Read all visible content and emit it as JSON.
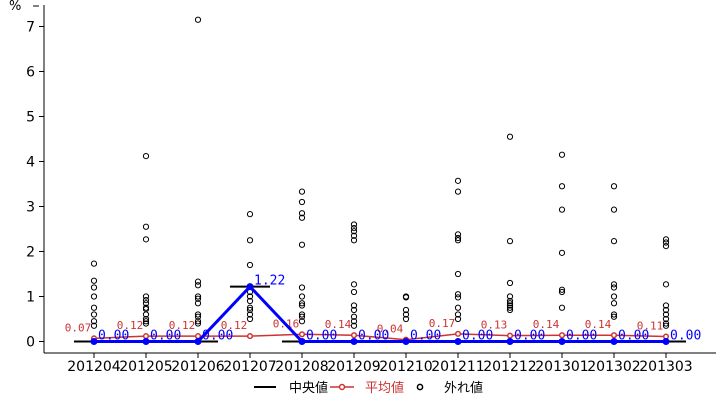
{
  "chart_data": {
    "type": "box-summary",
    "y_unit": "%",
    "ylim": [
      0,
      7.5
    ],
    "yticks": [
      "0",
      "1",
      "2",
      "3",
      "4",
      "5",
      "6",
      "7"
    ],
    "categories": [
      "201204",
      "201205",
      "201206",
      "201207",
      "201208",
      "201209",
      "201210",
      "201211",
      "201212",
      "201301",
      "201302",
      "201303"
    ],
    "median": {
      "name": "中央値",
      "values": [
        0.0,
        0.0,
        0.0,
        1.22,
        0.0,
        0.0,
        0.0,
        0.0,
        0.0,
        0.0,
        0.0,
        0.0
      ],
      "labels": [
        "0.00",
        "0.00",
        "0.00",
        "1.22",
        "0.00",
        "0.00",
        "0.00",
        "0.00",
        "0.00",
        "0.00",
        "0.00",
        "0.00"
      ],
      "color": "#0000ff"
    },
    "mean": {
      "name": "平均値",
      "values": [
        0.07,
        0.12,
        0.12,
        0.12,
        0.16,
        0.14,
        0.04,
        0.17,
        0.13,
        0.14,
        0.14,
        0.11
      ],
      "labels": [
        "0.07",
        "0.12",
        "0.12",
        "0.12",
        "0.16",
        "0.14",
        "0.04",
        "0.17",
        "0.13",
        "0.14",
        "0.14",
        "0.11"
      ],
      "color": "#cc3333"
    },
    "outliers": {
      "name": "外れ値",
      "values": [
        [
          1.73,
          1.35,
          1.2,
          1.0,
          0.75,
          0.6,
          0.45,
          0.35
        ],
        [
          4.12,
          2.55,
          2.27,
          1.0,
          0.92,
          0.85,
          0.75,
          0.72,
          0.6,
          0.5,
          0.45,
          0.4
        ],
        [
          7.15,
          1.33,
          1.25,
          1.0,
          0.95,
          0.85,
          0.6,
          0.55,
          0.45,
          0.4
        ],
        [
          2.83,
          2.25,
          1.7,
          1.1,
          1.0,
          0.9,
          0.75,
          0.7,
          0.6,
          0.5
        ],
        [
          3.33,
          3.1,
          2.85,
          2.75,
          2.15,
          1.2,
          1.0,
          0.85,
          0.8,
          0.6,
          0.55,
          0.45
        ],
        [
          2.6,
          2.52,
          2.45,
          2.35,
          2.25,
          1.27,
          1.1,
          0.8,
          0.7,
          0.55,
          0.45,
          0.35
        ],
        [
          1.0,
          0.98,
          0.7,
          0.6,
          0.5
        ],
        [
          3.57,
          3.33,
          2.38,
          2.3,
          2.25,
          1.5,
          1.05,
          0.98,
          0.75,
          0.6,
          0.5
        ],
        [
          4.55,
          2.23,
          1.3,
          1.0,
          0.9,
          0.85,
          0.8,
          0.75,
          0.7
        ],
        [
          4.15,
          3.45,
          2.93,
          1.97,
          1.15,
          1.1,
          0.75
        ],
        [
          3.45,
          2.93,
          2.23,
          1.27,
          1.2,
          1.0,
          0.85,
          0.6,
          0.55
        ],
        [
          2.27,
          2.2,
          2.12,
          1.27,
          0.8,
          0.7,
          0.6,
          0.5,
          0.4,
          0.35
        ]
      ]
    },
    "legend": {
      "placement": "bottom",
      "items": [
        {
          "label": "中央値",
          "kind": "median-line",
          "color": "#000000"
        },
        {
          "label": "平均値",
          "kind": "mean-line",
          "color": "#cc3333"
        },
        {
          "label": "外れ値",
          "kind": "outlier-point",
          "color": "#000000"
        }
      ]
    },
    "grid": false
  }
}
